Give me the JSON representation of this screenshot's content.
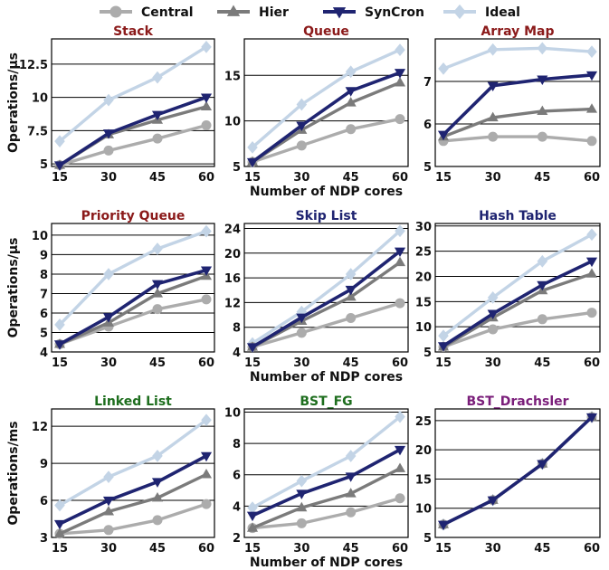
{
  "legend": [
    {
      "name": "Central",
      "color": "#acacac",
      "marker": "circle"
    },
    {
      "name": "Hier",
      "color": "#7b7b7b",
      "marker": "triangle-up"
    },
    {
      "name": "SynCron",
      "color": "#1f2471",
      "marker": "triangle-down"
    },
    {
      "name": "Ideal",
      "color": "#c3d4e6",
      "marker": "diamond"
    }
  ],
  "chart_data": [
    {
      "type": "line",
      "title": "Stack",
      "title_color": "#8b1a1a",
      "categories": [
        "15",
        "30",
        "45",
        "60"
      ],
      "ylim": [
        4.8,
        14.4
      ],
      "yticks": [
        5,
        7.5,
        10,
        12.5
      ],
      "ytick_labels": [
        "5",
        "7.5",
        "10",
        "12.5"
      ],
      "ylabel": "Operations/µs",
      "xlabel": "",
      "series": [
        {
          "name": "Central",
          "values": [
            4.9,
            6.0,
            6.9,
            7.9
          ]
        },
        {
          "name": "Hier",
          "values": [
            4.9,
            7.2,
            8.3,
            9.3
          ]
        },
        {
          "name": "SynCron",
          "values": [
            4.9,
            7.3,
            8.7,
            10.0
          ]
        },
        {
          "name": "Ideal",
          "values": [
            6.7,
            9.8,
            11.5,
            13.8
          ]
        }
      ]
    },
    {
      "type": "line",
      "title": "Queue",
      "title_color": "#8b1a1a",
      "categories": [
        "15",
        "30",
        "45",
        "60"
      ],
      "ylim": [
        5,
        19
      ],
      "yticks": [
        5,
        10,
        15
      ],
      "ytick_labels": [
        "5",
        "10",
        "15"
      ],
      "ylabel": "",
      "xlabel": "Number of NDP cores",
      "series": [
        {
          "name": "Central",
          "values": [
            5.5,
            7.3,
            9.1,
            10.2
          ]
        },
        {
          "name": "Hier",
          "values": [
            5.5,
            9.0,
            12.0,
            14.2
          ]
        },
        {
          "name": "SynCron",
          "values": [
            5.5,
            9.5,
            13.3,
            15.3
          ]
        },
        {
          "name": "Ideal",
          "values": [
            7.1,
            11.8,
            15.4,
            17.8
          ]
        }
      ]
    },
    {
      "type": "line",
      "title": "Array Map",
      "title_color": "#8b1a1a",
      "categories": [
        "15",
        "30",
        "45",
        "60"
      ],
      "ylim": [
        5,
        8
      ],
      "yticks": [
        5,
        6,
        7
      ],
      "ytick_labels": [
        "5",
        "6",
        "7"
      ],
      "ylabel": "",
      "xlabel": "",
      "series": [
        {
          "name": "Central",
          "values": [
            5.6,
            5.7,
            5.7,
            5.6
          ]
        },
        {
          "name": "Hier",
          "values": [
            5.7,
            6.15,
            6.3,
            6.35
          ]
        },
        {
          "name": "SynCron",
          "values": [
            5.75,
            6.9,
            7.05,
            7.15
          ]
        },
        {
          "name": "Ideal",
          "values": [
            7.3,
            7.75,
            7.78,
            7.7
          ]
        }
      ]
    },
    {
      "type": "line",
      "title": "Priority Queue",
      "title_color": "#8b1a1a",
      "categories": [
        "15",
        "30",
        "45",
        "60"
      ],
      "ylim": [
        4,
        10.6
      ],
      "yticks": [
        4,
        5,
        6,
        7,
        8,
        9,
        10
      ],
      "ytick_labels": [
        "4",
        "5",
        "6",
        "7",
        "8",
        "9",
        "10"
      ],
      "ylabel": "Operations/µs",
      "xlabel": "",
      "series": [
        {
          "name": "Central",
          "values": [
            4.4,
            5.3,
            6.2,
            6.7
          ]
        },
        {
          "name": "Hier",
          "values": [
            4.4,
            5.5,
            7.0,
            7.9
          ]
        },
        {
          "name": "SynCron",
          "values": [
            4.4,
            5.8,
            7.5,
            8.2
          ]
        },
        {
          "name": "Ideal",
          "values": [
            5.4,
            8.0,
            9.3,
            10.2
          ]
        }
      ]
    },
    {
      "type": "line",
      "title": "Skip List",
      "title_color": "#1f2471",
      "categories": [
        "15",
        "30",
        "45",
        "60"
      ],
      "ylim": [
        4,
        24.8
      ],
      "yticks": [
        4,
        8,
        12,
        16,
        20,
        24
      ],
      "ytick_labels": [
        "4",
        "8",
        "12",
        "16",
        "20",
        "24"
      ],
      "ylabel": "",
      "xlabel": "Number of NDP cores",
      "series": [
        {
          "name": "Central",
          "values": [
            4.8,
            7.1,
            9.5,
            11.9
          ]
        },
        {
          "name": "Hier",
          "values": [
            4.8,
            9.0,
            12.9,
            18.5
          ]
        },
        {
          "name": "SynCron",
          "values": [
            4.8,
            9.6,
            14.1,
            20.3
          ]
        },
        {
          "name": "Ideal",
          "values": [
            5.4,
            10.5,
            16.6,
            23.6
          ]
        }
      ]
    },
    {
      "type": "line",
      "title": "Hash Table",
      "title_color": "#1f2471",
      "categories": [
        "15",
        "30",
        "45",
        "60"
      ],
      "ylim": [
        5,
        30.5
      ],
      "yticks": [
        5,
        10,
        15,
        20,
        25,
        30
      ],
      "ytick_labels": [
        "5",
        "10",
        "15",
        "20",
        "25",
        "30"
      ],
      "ylabel": "",
      "xlabel": "",
      "series": [
        {
          "name": "Central",
          "values": [
            6.0,
            9.5,
            11.5,
            12.8
          ]
        },
        {
          "name": "Hier",
          "values": [
            6.0,
            11.8,
            17.2,
            20.5
          ]
        },
        {
          "name": "SynCron",
          "values": [
            6.2,
            12.6,
            18.3,
            23.0
          ]
        },
        {
          "name": "Ideal",
          "values": [
            8.2,
            15.8,
            23.0,
            28.3
          ]
        }
      ]
    },
    {
      "type": "line",
      "title": "Linked List",
      "title_color": "#1e6e1e",
      "categories": [
        "15",
        "30",
        "45",
        "60"
      ],
      "ylim": [
        3,
        13.4
      ],
      "yticks": [
        3,
        6,
        9,
        12
      ],
      "ytick_labels": [
        "3",
        "6",
        "9",
        "12"
      ],
      "ylabel": "Operations/ms",
      "xlabel": "",
      "series": [
        {
          "name": "Central",
          "values": [
            3.3,
            3.6,
            4.4,
            5.7
          ]
        },
        {
          "name": "Hier",
          "values": [
            3.3,
            5.1,
            6.2,
            8.1
          ]
        },
        {
          "name": "SynCron",
          "values": [
            4.1,
            6.0,
            7.5,
            9.6
          ]
        },
        {
          "name": "Ideal",
          "values": [
            5.6,
            7.9,
            9.6,
            12.5
          ]
        }
      ]
    },
    {
      "type": "line",
      "title": "BST_FG",
      "title_color": "#1e6e1e",
      "categories": [
        "15",
        "30",
        "45",
        "60"
      ],
      "ylim": [
        2,
        10.2
      ],
      "yticks": [
        2,
        4,
        6,
        8,
        10
      ],
      "ytick_labels": [
        "2",
        "4",
        "6",
        "8",
        "10"
      ],
      "ylabel": "",
      "xlabel": "Number of NDP cores",
      "series": [
        {
          "name": "Central",
          "values": [
            2.6,
            2.9,
            3.6,
            4.5
          ]
        },
        {
          "name": "Hier",
          "values": [
            2.6,
            3.9,
            4.8,
            6.4
          ]
        },
        {
          "name": "SynCron",
          "values": [
            3.4,
            4.8,
            5.9,
            7.6
          ]
        },
        {
          "name": "Ideal",
          "values": [
            3.9,
            5.6,
            7.2,
            9.7
          ]
        }
      ]
    },
    {
      "type": "line",
      "title": "BST_Drachsler",
      "title_color": "#7a1e7a",
      "categories": [
        "15",
        "30",
        "45",
        "60"
      ],
      "ylim": [
        5,
        27
      ],
      "yticks": [
        5,
        10,
        15,
        20,
        25
      ],
      "ytick_labels": [
        "5",
        "10",
        "15",
        "20",
        "25"
      ],
      "ylabel": "",
      "xlabel": "",
      "series": [
        {
          "name": "Central",
          "values": [
            7.2,
            11.4,
            17.6,
            25.6
          ]
        },
        {
          "name": "Hier",
          "values": [
            7.2,
            11.4,
            17.6,
            25.6
          ]
        },
        {
          "name": "SynCron",
          "values": [
            7.2,
            11.4,
            17.6,
            25.6
          ]
        },
        {
          "name": "Ideal",
          "values": [
            7.2,
            11.4,
            17.6,
            25.6
          ]
        }
      ]
    }
  ]
}
